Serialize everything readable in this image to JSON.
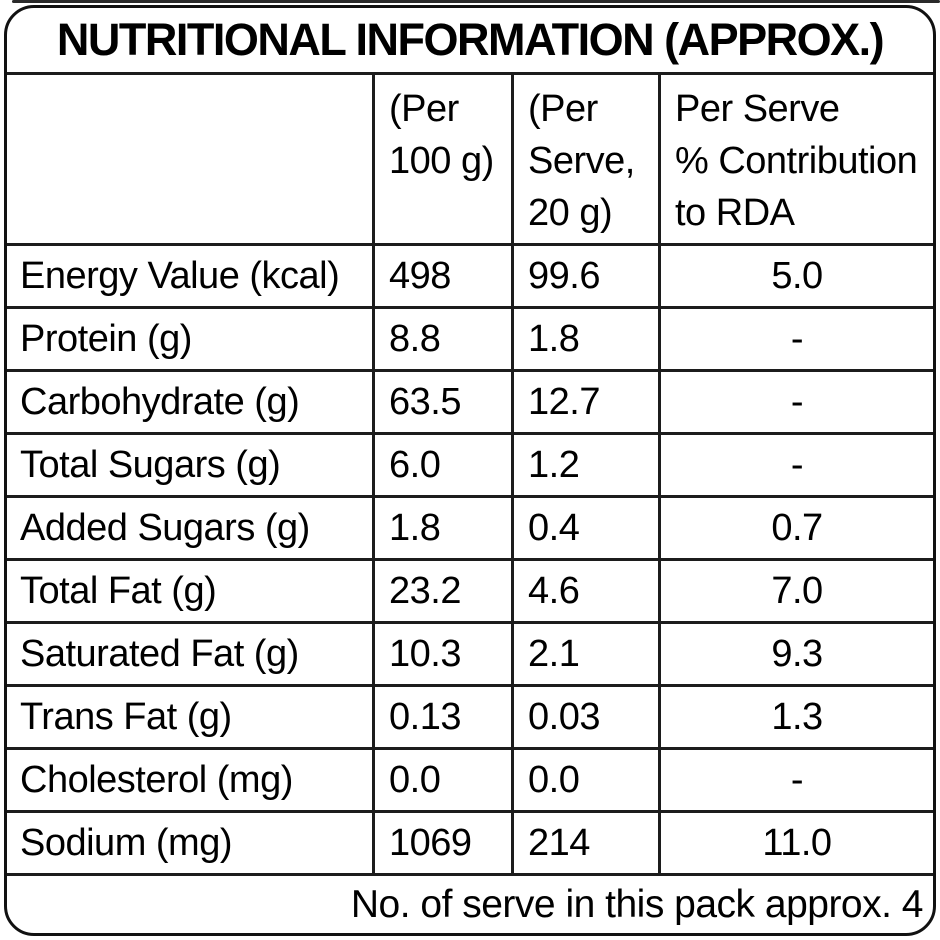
{
  "title": "NUTRITIONAL INFORMATION (APPROX.)",
  "table": {
    "header": {
      "per100Lines": [
        "(Per",
        "100 g)"
      ],
      "perServeLines": [
        "(Per",
        "Serve,",
        "20 g)"
      ],
      "rdaLines": [
        "Per Serve",
        "% Contribution",
        "to RDA"
      ]
    },
    "columns": [
      "",
      "(Per 100 g)",
      "(Per Serve, 20 g)",
      "Per Serve % Contribution to RDA"
    ],
    "rows": [
      {
        "label": "Energy Value (kcal)",
        "per100": "498",
        "perServe": "99.6",
        "rda": "5.0"
      },
      {
        "label": "Protein (g)",
        "per100": "8.8",
        "perServe": "1.8",
        "rda": "-"
      },
      {
        "label": "Carbohydrate (g)",
        "per100": "63.5",
        "perServe": "12.7",
        "rda": "-"
      },
      {
        "label": "Total Sugars (g)",
        "per100": "6.0",
        "perServe": "1.2",
        "rda": "-"
      },
      {
        "label": "Added Sugars (g)",
        "per100": "1.8",
        "perServe": "0.4",
        "rda": "0.7"
      },
      {
        "label": "Total Fat (g)",
        "per100": "23.2",
        "perServe": "4.6",
        "rda": "7.0"
      },
      {
        "label": "Saturated Fat (g)",
        "per100": "10.3",
        "perServe": "2.1",
        "rda": "9.3"
      },
      {
        "label": "Trans Fat (g)",
        "per100": "0.13",
        "perServe": "0.03",
        "rda": "1.3"
      },
      {
        "label": "Cholesterol (mg)",
        "per100": "0.0",
        "perServe": "0.0",
        "rda": "-"
      },
      {
        "label": "Sodium (mg)",
        "per100": "1069",
        "perServe": "214",
        "rda": "11.0"
      }
    ]
  },
  "footer": {
    "note": "No. of serve in this pack approx. 4"
  },
  "colors": {
    "background": "#ffffff",
    "text": "#000000",
    "border": "#1c1c1c"
  }
}
